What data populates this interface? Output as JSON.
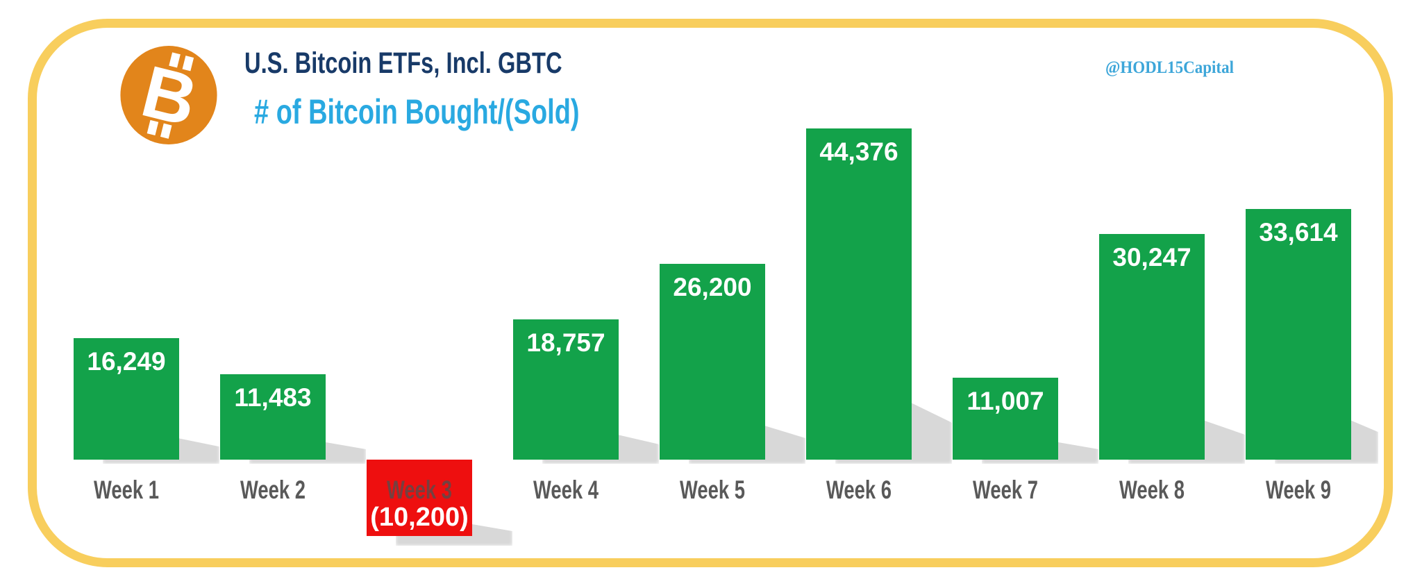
{
  "header": {
    "title": "U.S. Bitcoin ETFs, Incl. GBTC",
    "subtitle": "# of Bitcoin Bought/(Sold)",
    "attribution": "@HODL15Capital",
    "logo": "bitcoin-icon"
  },
  "chart_data": {
    "type": "bar",
    "title": "U.S. Bitcoin ETFs, Incl. GBTC",
    "subtitle": "# of Bitcoin Bought/(Sold)",
    "categories": [
      "Week 1",
      "Week 2",
      "Week 3",
      "Week 4",
      "Week 5",
      "Week 6",
      "Week 7",
      "Week 8",
      "Week 9"
    ],
    "values": [
      16249,
      11483,
      -10200,
      18757,
      26200,
      44376,
      11007,
      30247,
      33614
    ],
    "value_labels": [
      "16,249",
      "11,483",
      "(10,200)",
      "18,757",
      "26,200",
      "44,376",
      "11,007",
      "30,247",
      "33,614"
    ],
    "xlabel": "",
    "ylabel": "",
    "legend": false,
    "grid": false,
    "axis_ticks_visible": false,
    "baseline": 0,
    "colors": {
      "positive": "#13a24a",
      "negative": "#ee0f0f",
      "value_label": "#ffffff",
      "category_label": "#595959",
      "shadow": "#d8d8d8"
    }
  },
  "frame": {
    "border_color": "#f8ce5d",
    "background": "#ffffff"
  },
  "brand": {
    "title_color": "#183a68",
    "subtitle_color": "#29a9e1",
    "attribution_color": "#3da6d9",
    "bitcoin_orange": "#e2851b"
  }
}
